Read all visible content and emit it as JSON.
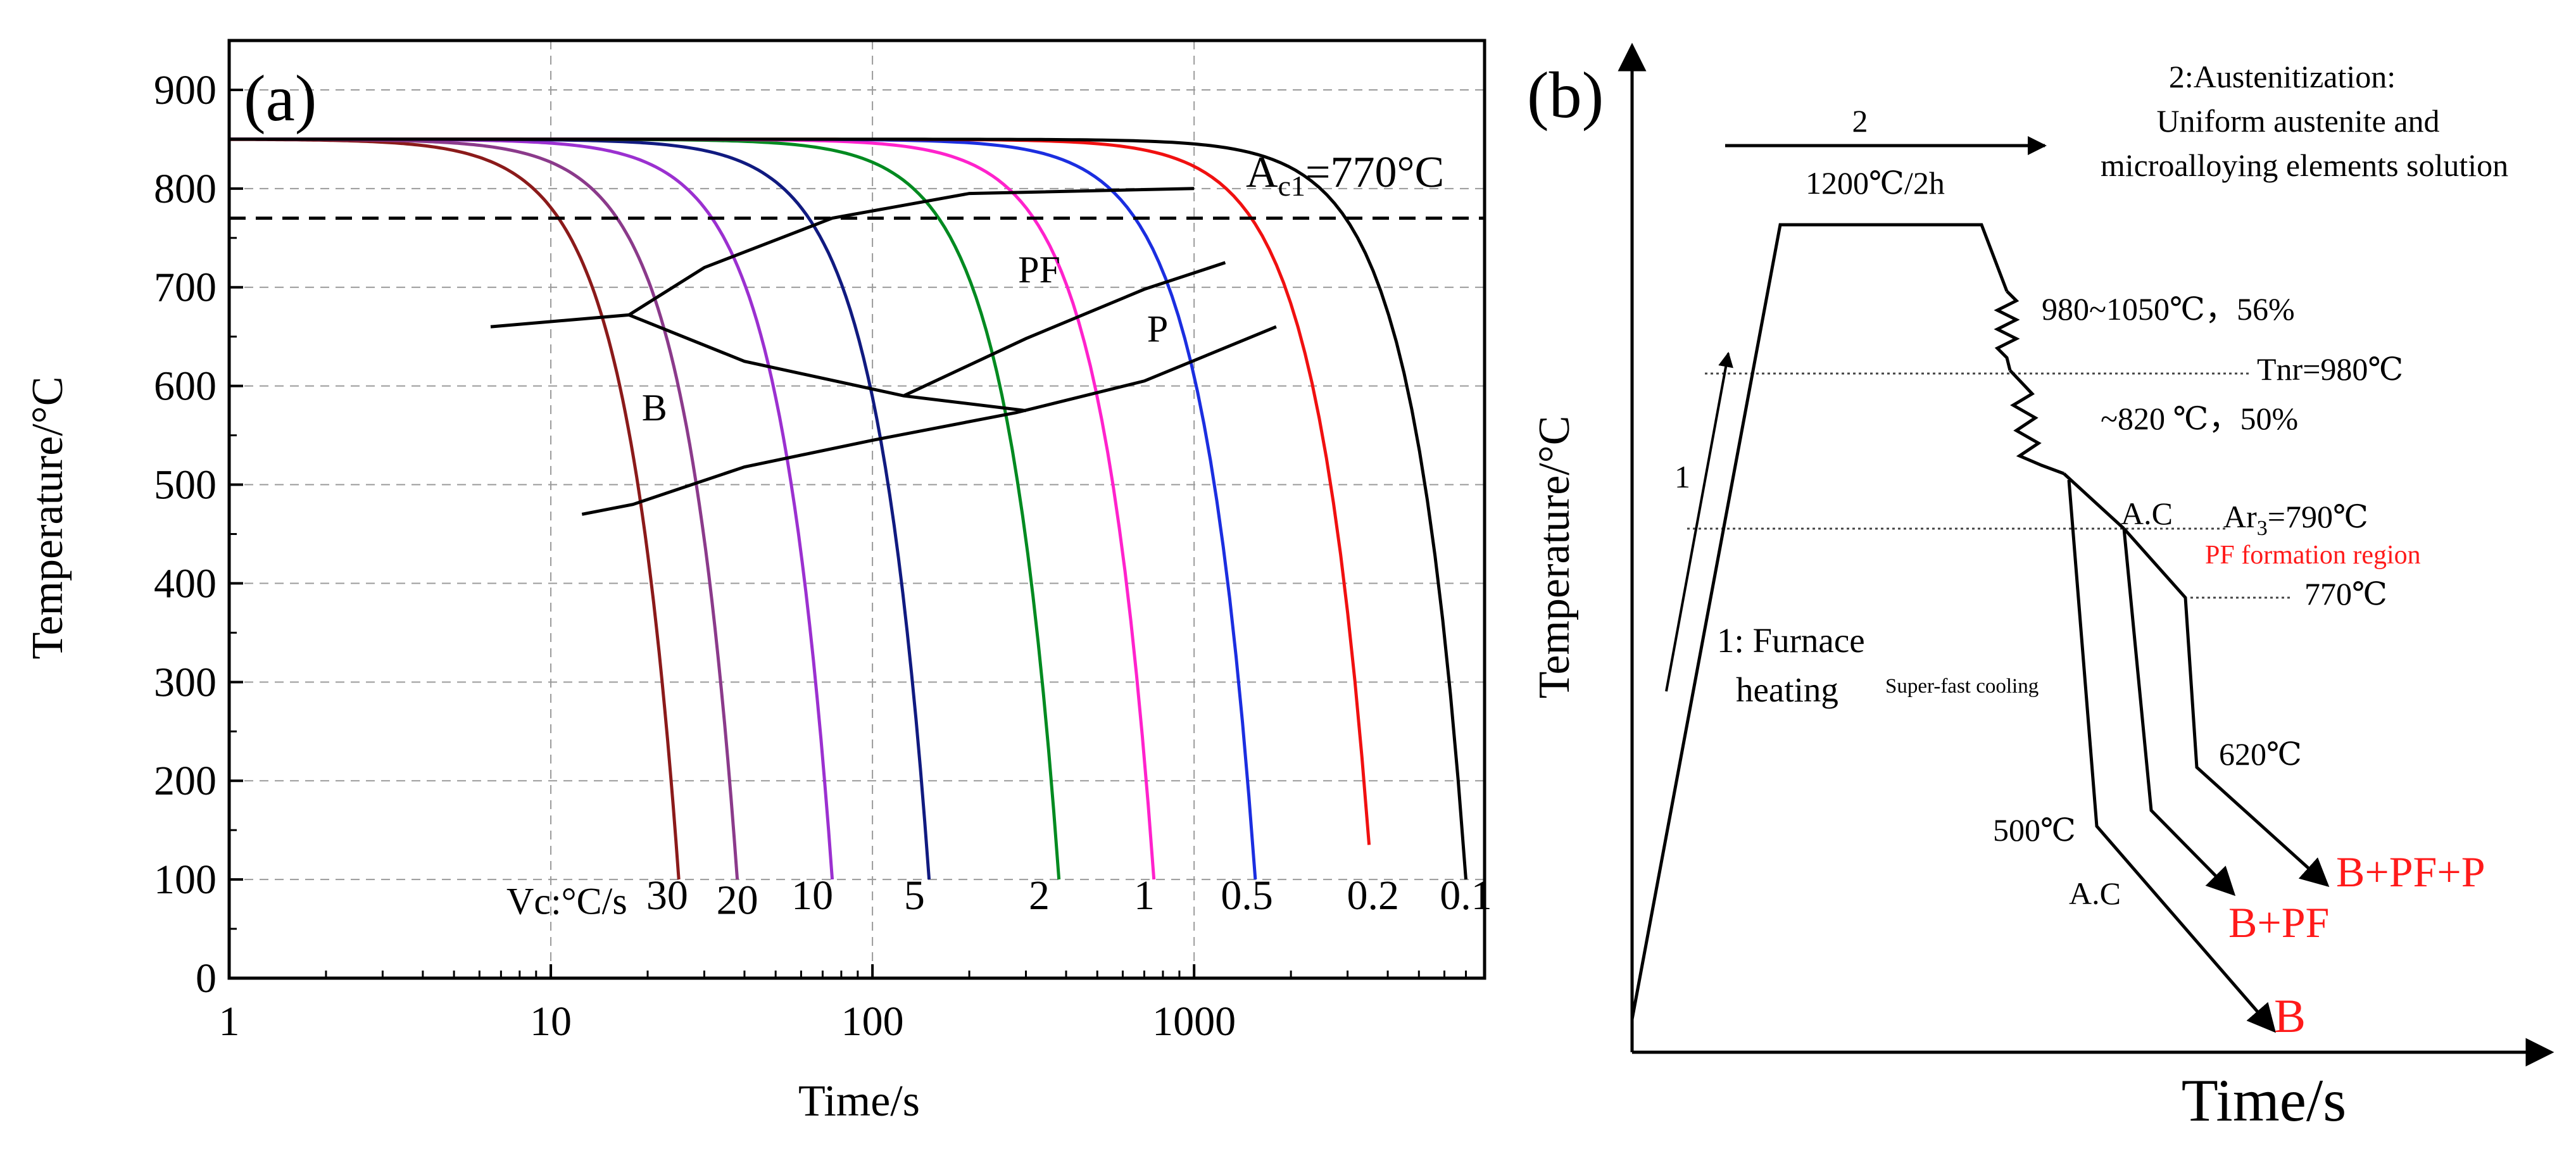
{
  "chart_data": [
    {
      "panel": "(a)",
      "type": "line",
      "title": "",
      "xlabel": "Time/s",
      "ylabel": "Temperature/°C",
      "xscale": "log",
      "xlim": [
        1,
        8000
      ],
      "ylim": [
        0,
        950
      ],
      "x_ticks": [
        1,
        10,
        100,
        1000
      ],
      "x_tick_labels": [
        "1",
        "10",
        "100",
        "1000"
      ],
      "y_ticks": [
        0,
        100,
        200,
        300,
        400,
        500,
        600,
        700,
        800,
        900
      ],
      "y_tick_labels": [
        "0",
        "100",
        "200",
        "300",
        "400",
        "500",
        "600",
        "700",
        "800",
        "900"
      ],
      "grid": true,
      "reference_line": {
        "y": 770,
        "label_main": "A",
        "label_sub": "c1",
        "label_rest": "=770°C",
        "style": "dashed"
      },
      "vc_prefix": "Vc:°C/s",
      "series": [
        {
          "name": "30",
          "color": "#8b1a1a",
          "t_end": 25,
          "T_end": 100,
          "label_x": 23,
          "label_y": 70
        },
        {
          "name": "20",
          "color": "#8b3a8b",
          "t_end": 38,
          "T_end": 100,
          "label_x": 38,
          "label_y": 65
        },
        {
          "name": "10",
          "color": "#9b30d0",
          "t_end": 75,
          "T_end": 100,
          "label_x": 65,
          "label_y": 70
        },
        {
          "name": "5",
          "color": "#101a80",
          "t_end": 150,
          "T_end": 100,
          "label_x": 135,
          "label_y": 70
        },
        {
          "name": "2",
          "color": "#008a20",
          "t_end": 380,
          "T_end": 100,
          "label_x": 330,
          "label_y": 70
        },
        {
          "name": "1",
          "color": "#ff22cc",
          "t_end": 750,
          "T_end": 100,
          "label_x": 700,
          "label_y": 70
        },
        {
          "name": "0.5",
          "color": "#1b2ee0",
          "t_end": 1550,
          "T_end": 100,
          "label_x": 1460,
          "label_y": 70
        },
        {
          "name": "0.2",
          "color": "#f01010",
          "t_end": 3500,
          "T_end": 135,
          "label_x": 3600,
          "label_y": 70
        },
        {
          "name": "0.1",
          "color": "#000000",
          "t_end": 7000,
          "T_end": 100,
          "label_x": 7000,
          "label_y": 70
        }
      ],
      "phase_boundaries": [
        [
          [
            6.5,
            660
          ],
          [
            17.5,
            672
          ],
          [
            30,
            720
          ],
          [
            75,
            770
          ],
          [
            200,
            795
          ],
          [
            1000,
            800
          ]
        ],
        [
          [
            17.5,
            672
          ],
          [
            40,
            625
          ],
          [
            125,
            590
          ],
          [
            300,
            575
          ]
        ],
        [
          [
            125,
            590
          ],
          [
            300,
            648
          ],
          [
            700,
            698
          ],
          [
            1250,
            725
          ]
        ],
        [
          [
            12.5,
            470
          ],
          [
            18,
            480
          ],
          [
            40,
            518
          ],
          [
            100,
            545
          ],
          [
            280,
            573
          ],
          [
            700,
            605
          ],
          [
            1800,
            660
          ]
        ]
      ],
      "region_labels": [
        {
          "text": "PF",
          "x": 330,
          "y": 705
        },
        {
          "text": "P",
          "x": 770,
          "y": 645
        },
        {
          "text": "B",
          "x": 21,
          "y": 565
        }
      ]
    },
    {
      "panel": "(b)",
      "type": "diagram",
      "xlabel": "Time/s",
      "ylabel": "Temperature/°C",
      "annotations": {
        "step2_number": "2",
        "step2_title": "2:Austenitization:",
        "step2_line2": "Uniform austenite and",
        "step2_line3": "microalloying elements solution",
        "hold": "1200℃/2h",
        "rough_rolling": "980~1050℃，56%",
        "tnr": "Tnr=980℃",
        "finish_rolling": "~820 ℃，50%",
        "step1_number": "1",
        "furnace_line1": "1: Furnace",
        "furnace_line2": "heating",
        "super_fast": "Super-fast cooling",
        "ac_upper": "A.C",
        "ar3_main": "Ar",
        "ar3_sub": "3",
        "ar3_rest": "=790℃",
        "pf_region": "PF formation region",
        "t770": "770℃",
        "t620": "620℃",
        "t500": "500℃",
        "ac_lower": "A.C",
        "result_b": "B",
        "result_bpf": "B+PF",
        "result_bpfp": "B+PF+P"
      },
      "colors": {
        "result": "#ff1a1a",
        "pf_region": "#ff1a1a"
      }
    }
  ]
}
